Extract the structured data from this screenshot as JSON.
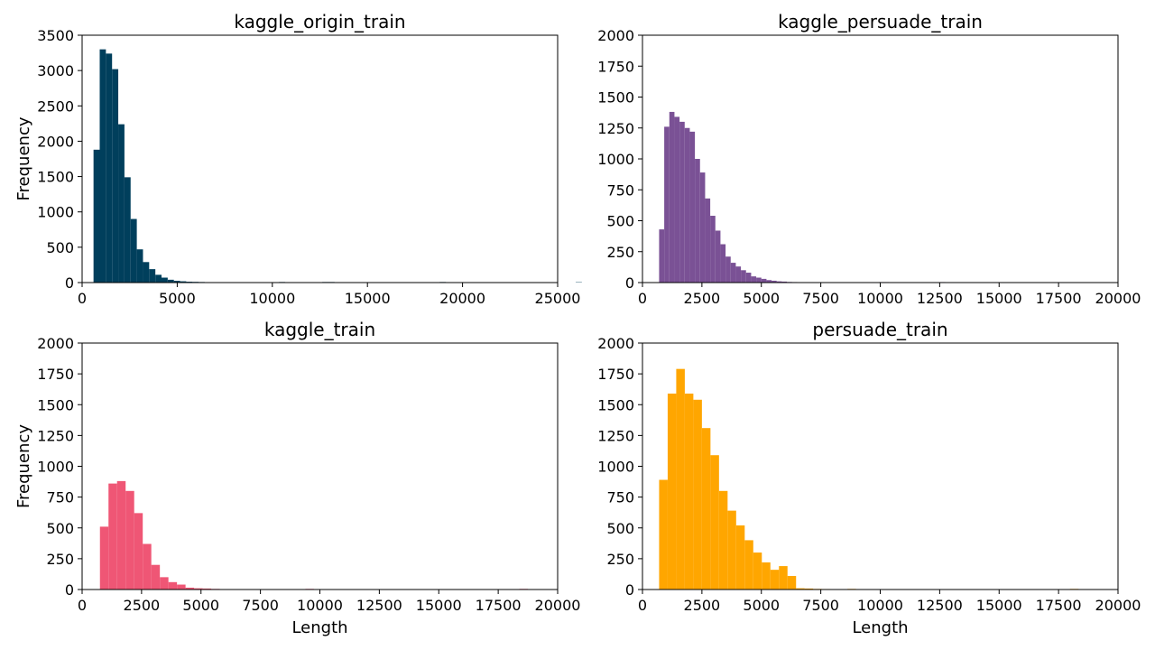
{
  "chart_data": [
    {
      "type": "bar",
      "title": "kaggle_origin_train",
      "xlabel": "",
      "ylabel": "Frequency",
      "color": "#003f5c",
      "xlim": [
        0,
        25000
      ],
      "ylim": [
        0,
        3500
      ],
      "xticks": [
        0,
        5000,
        10000,
        15000,
        20000,
        25000
      ],
      "yticks": [
        0,
        500,
        1000,
        1500,
        2000,
        2500,
        3000,
        3500
      ],
      "bin_start": 600,
      "bin_width": 325,
      "values": [
        1880,
        3300,
        3240,
        3020,
        2240,
        1490,
        900,
        470,
        290,
        190,
        110,
        70,
        40,
        25,
        18,
        12,
        10,
        8,
        6,
        5,
        4,
        3,
        2,
        2,
        1,
        1,
        0,
        0,
        5,
        5,
        8,
        6,
        2,
        0,
        0,
        0,
        0,
        8,
        8,
        6,
        0,
        0,
        0,
        0,
        0,
        0,
        0,
        0,
        0,
        0,
        0,
        0,
        0,
        0,
        0,
        0,
        8,
        0,
        0,
        0,
        0,
        0,
        0,
        0,
        0,
        0,
        0,
        0,
        0,
        0,
        0,
        0,
        0,
        0,
        0,
        0,
        0,
        0,
        5,
        0,
        0,
        0,
        0,
        0,
        0,
        0,
        0,
        0,
        0,
        0,
        0,
        0,
        0,
        0,
        0,
        0,
        0,
        0,
        0,
        0
      ]
    },
    {
      "type": "bar",
      "title": "kaggle_persuade_train",
      "xlabel": "",
      "ylabel": "",
      "color": "#7a5195",
      "xlim": [
        0,
        20000
      ],
      "ylim": [
        0,
        2000
      ],
      "xticks": [
        0,
        2500,
        5000,
        7500,
        10000,
        12500,
        15000,
        17500,
        20000
      ],
      "yticks": [
        0,
        250,
        500,
        750,
        1000,
        1250,
        1500,
        1750,
        2000
      ],
      "bin_start": 700,
      "bin_width": 215,
      "values": [
        430,
        1260,
        1380,
        1340,
        1300,
        1250,
        1220,
        1000,
        890,
        680,
        540,
        420,
        310,
        210,
        160,
        130,
        100,
        80,
        50,
        40,
        30,
        20,
        15,
        10,
        8,
        5,
        4,
        3,
        2,
        2,
        0,
        0,
        0,
        0,
        0,
        0,
        0,
        0,
        0,
        0,
        0,
        0,
        0,
        4,
        4,
        0,
        0,
        0,
        0,
        0,
        0,
        0,
        0,
        0,
        0,
        4
      ]
    },
    {
      "type": "bar",
      "title": "kaggle_train",
      "xlabel": "Length",
      "ylabel": "Frequency",
      "color": "#ef5675",
      "xlim": [
        0,
        20000
      ],
      "ylim": [
        0,
        2000
      ],
      "xticks": [
        0,
        2500,
        5000,
        7500,
        10000,
        12500,
        15000,
        17500,
        20000
      ],
      "yticks": [
        0,
        250,
        500,
        750,
        1000,
        1250,
        1500,
        1750,
        2000
      ],
      "bin_start": 750,
      "bin_width": 360,
      "values": [
        510,
        860,
        880,
        800,
        620,
        370,
        200,
        100,
        60,
        40,
        15,
        10,
        8,
        5,
        3,
        2,
        0,
        0,
        0,
        0,
        0,
        0,
        0,
        0,
        5,
        0,
        0,
        0,
        0,
        0,
        0,
        0,
        0,
        0,
        0,
        0,
        0,
        0,
        0,
        0,
        0,
        0,
        0,
        0,
        0,
        0,
        0,
        0,
        0,
        5
      ]
    },
    {
      "type": "bar",
      "title": "persuade_train",
      "xlabel": "Length",
      "ylabel": "",
      "color": "#ffa600",
      "xlim": [
        0,
        20000
      ],
      "ylim": [
        0,
        2000
      ],
      "xticks": [
        0,
        2500,
        5000,
        7500,
        10000,
        12500,
        15000,
        17500,
        20000
      ],
      "yticks": [
        0,
        250,
        500,
        750,
        1000,
        1250,
        1500,
        1750,
        2000
      ],
      "bin_start": 700,
      "bin_width": 360,
      "values": [
        890,
        1590,
        1790,
        1590,
        1540,
        1310,
        1090,
        800,
        640,
        520,
        400,
        300,
        220,
        160,
        190,
        110,
        10,
        8,
        5,
        4,
        3,
        2,
        5,
        0,
        0,
        0,
        0,
        0,
        0,
        0,
        0,
        0,
        0,
        0,
        0,
        0,
        0,
        0,
        0,
        0,
        0,
        0,
        0,
        0,
        0,
        0,
        0,
        0,
        5
      ]
    }
  ]
}
